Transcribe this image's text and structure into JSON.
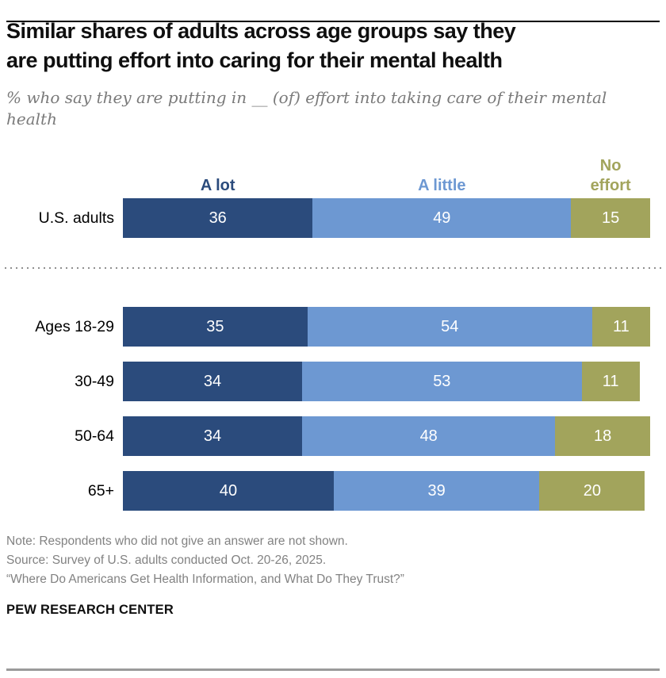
{
  "header": {
    "title": "Similar shares of adults across age groups say they are putting effort into caring for their mental health",
    "title_lines": [
      "Similar shares of adults across age groups say they",
      "are putting effort into caring for their mental health"
    ],
    "subtitle_lines": [
      "% who say they are putting in __ (of) effort into taking care of their mental",
      "health"
    ]
  },
  "chart_data": {
    "type": "bar",
    "stacked": true,
    "orientation": "horizontal",
    "unit": "%",
    "xlim": [
      0,
      100
    ],
    "legend_position": "above first bar, each label over its segment",
    "legend": [
      {
        "label": "A lot",
        "color": "#2B4B7C"
      },
      {
        "label": "A little",
        "color": "#6D98D2"
      },
      {
        "label": "No effort",
        "color": "#A2A45C"
      }
    ],
    "categories": [
      "U.S. adults",
      "Ages 18-29",
      "30-49",
      "50-64",
      "65+"
    ],
    "rows": [
      {
        "label": "U.S. adults",
        "values": [
          36,
          49,
          15
        ]
      },
      {
        "label": "Ages 18-29",
        "values": [
          35,
          54,
          11
        ]
      },
      {
        "label": "30-49",
        "values": [
          34,
          53,
          11
        ]
      },
      {
        "label": "50-64",
        "values": [
          34,
          48,
          18
        ]
      },
      {
        "label": "65+",
        "values": [
          40,
          39,
          20
        ]
      }
    ]
  },
  "footer": {
    "note": "Note: Respondents who did not give an answer are not shown.",
    "source": "Source: Survey of U.S. adults conducted Oct. 20-26, 2025.",
    "report": "“Where Do Americans Get Health Information, and What Do They Trust?”",
    "brand": "PEW RESEARCH CENTER"
  }
}
